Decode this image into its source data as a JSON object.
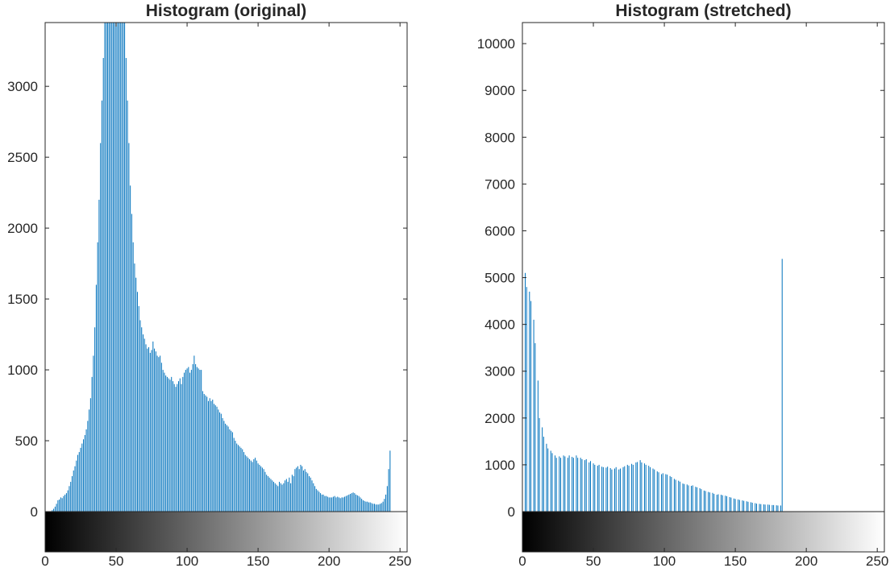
{
  "chart_data": [
    {
      "type": "bar",
      "title": "Histogram (original)",
      "xlabel": "",
      "ylabel": "",
      "xlim": [
        0,
        255
      ],
      "ylim": [
        0,
        3450
      ],
      "x_ticks": [
        0,
        50,
        100,
        150,
        200,
        250
      ],
      "y_ticks": [
        0,
        500,
        1000,
        1500,
        2000,
        2500,
        3000
      ],
      "bar_color": "#0072BD",
      "colorbar": "grayscale 0-255",
      "grid": false,
      "series": [
        {
          "values": [
            0,
            0,
            0,
            0,
            0,
            10,
            20,
            35,
            55,
            80,
            85,
            100,
            95,
            110,
            120,
            130,
            150,
            180,
            210,
            250,
            290,
            320,
            360,
            400,
            420,
            450,
            480,
            510,
            540,
            580,
            640,
            720,
            800,
            950,
            1100,
            1300,
            1600,
            1900,
            2200,
            2600,
            2900,
            3200,
            3450,
            3450,
            3450,
            3450,
            3450,
            3450,
            3450,
            3450,
            3450,
            3450,
            3450,
            3450,
            3450,
            3450,
            3450,
            3200,
            2900,
            2600,
            2300,
            2100,
            1900,
            1750,
            1650,
            1550,
            1450,
            1350,
            1300,
            1250,
            1220,
            1180,
            1150,
            1160,
            1120,
            1140,
            1200,
            1150,
            1130,
            1100,
            1090,
            1100,
            1050,
            1000,
            980,
            960,
            950,
            940,
            930,
            950,
            920,
            900,
            880,
            900,
            920,
            940,
            900,
            950,
            980,
            1000,
            1010,
            1020,
            980,
            1000,
            1040,
            1100,
            1040,
            1020,
            1010,
            1000,
            1000,
            850,
            830,
            820,
            810,
            780,
            800,
            780,
            790,
            760,
            750,
            740,
            720,
            700,
            690,
            660,
            640,
            620,
            610,
            600,
            580,
            570,
            560,
            520,
            500,
            480,
            470,
            460,
            450,
            440,
            420,
            400,
            390,
            380,
            370,
            360,
            350,
            370,
            380,
            360,
            340,
            330,
            320,
            310,
            300,
            280,
            260,
            250,
            240,
            230,
            220,
            210,
            200,
            190,
            180,
            210,
            200,
            190,
            200,
            220,
            230,
            210,
            240,
            200,
            260,
            250,
            300,
            310,
            320,
            300,
            330,
            320,
            290,
            300,
            280,
            270,
            250,
            240,
            220,
            200,
            180,
            160,
            150,
            140,
            130,
            120,
            120,
            110,
            110,
            105,
            100,
            100,
            100,
            105,
            110,
            100,
            105,
            100,
            95,
            100,
            100,
            105,
            110,
            115,
            120,
            125,
            130,
            135,
            130,
            120,
            115,
            110,
            100,
            90,
            80,
            75,
            70,
            70,
            65,
            65,
            60,
            55,
            55,
            50,
            50,
            50,
            55,
            60,
            70,
            90,
            120,
            180,
            300,
            430
          ]
        }
      ]
    },
    {
      "type": "bar",
      "title": "Histogram (stretched)",
      "xlabel": "",
      "ylabel": "",
      "xlim": [
        0,
        255
      ],
      "ylim": [
        0,
        10450
      ],
      "x_ticks": [
        0,
        50,
        100,
        150,
        200,
        250
      ],
      "y_ticks": [
        0,
        1000,
        2000,
        3000,
        4000,
        5000,
        6000,
        7000,
        8000,
        9000,
        10000
      ],
      "bar_color": "#0072BD",
      "colorbar": "grayscale 0-255",
      "grid": false,
      "series": [
        {
          "values": [
            10450,
            0,
            5100,
            4800,
            0,
            4700,
            4500,
            0,
            4100,
            3600,
            0,
            2800,
            2000,
            0,
            1800,
            1600,
            0,
            1450,
            1350,
            0,
            1300,
            1250,
            0,
            1200,
            1150,
            0,
            1180,
            1150,
            0,
            1200,
            1180,
            0,
            1150,
            1200,
            0,
            1170,
            1150,
            0,
            1200,
            1150,
            0,
            1150,
            1120,
            0,
            1100,
            1120,
            0,
            1050,
            1080,
            0,
            1030,
            1000,
            0,
            980,
            1000,
            0,
            960,
            950,
            0,
            940,
            960,
            0,
            930,
            900,
            0,
            920,
            950,
            0,
            900,
            920,
            0,
            950,
            970,
            0,
            1000,
            980,
            0,
            1020,
            1000,
            0,
            1050,
            1060,
            0,
            1100,
            1050,
            0,
            1030,
            1000,
            0,
            980,
            950,
            0,
            920,
            900,
            0,
            860,
            840,
            0,
            800,
            820,
            0,
            800,
            790,
            0,
            760,
            740,
            0,
            700,
            680,
            0,
            660,
            640,
            0,
            600,
            590,
            0,
            580,
            560,
            0,
            550,
            560,
            0,
            530,
            520,
            0,
            500,
            480,
            0,
            450,
            440,
            0,
            420,
            410,
            0,
            400,
            380,
            0,
            360,
            370,
            0,
            360,
            350,
            0,
            340,
            330,
            0,
            310,
            300,
            0,
            280,
            270,
            0,
            260,
            250,
            0,
            240,
            230,
            0,
            220,
            210,
            0,
            200,
            190,
            0,
            180,
            170,
            0,
            165,
            160,
            0,
            155,
            150,
            0,
            150,
            145,
            0,
            140,
            140,
            0,
            135,
            130,
            0,
            130,
            5400
          ]
        }
      ]
    }
  ]
}
